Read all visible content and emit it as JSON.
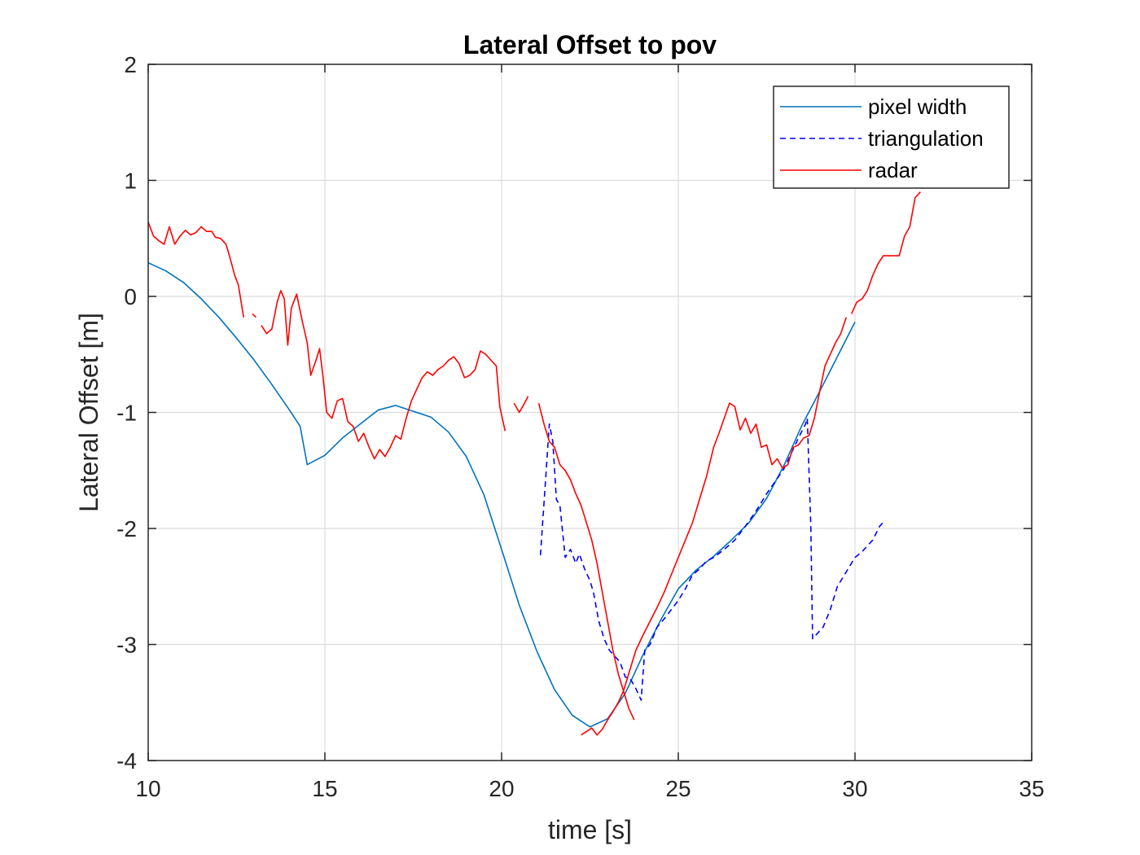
{
  "chart_data": {
    "type": "line",
    "title": "Lateral Offset to pov",
    "xlabel": "time [s]",
    "ylabel": "Lateral Offset [m]",
    "xlim": [
      10,
      35
    ],
    "ylim": [
      -4,
      2
    ],
    "xticks": [
      "10",
      "15",
      "20",
      "25",
      "30",
      "35"
    ],
    "yticks": [
      "2",
      "1",
      "0",
      "-1",
      "-2",
      "-3",
      "-4"
    ],
    "grid": true,
    "legend_position": "top-right",
    "series": [
      {
        "name": "pixel width",
        "color": "#0072BD",
        "style": "solid",
        "segments": [
          [
            [
              10.0,
              0.29
            ],
            [
              10.5,
              0.22
            ],
            [
              11.0,
              0.12
            ],
            [
              11.5,
              -0.02
            ],
            [
              12.0,
              -0.18
            ],
            [
              12.5,
              -0.36
            ],
            [
              13.0,
              -0.55
            ],
            [
              13.5,
              -0.76
            ],
            [
              14.0,
              -0.98
            ],
            [
              14.3,
              -1.12
            ],
            [
              14.5,
              -1.45
            ],
            [
              15.0,
              -1.37
            ],
            [
              15.5,
              -1.22
            ],
            [
              16.0,
              -1.1
            ],
            [
              16.5,
              -0.98
            ],
            [
              17.0,
              -0.94
            ],
            [
              17.5,
              -0.99
            ],
            [
              18.0,
              -1.04
            ],
            [
              18.5,
              -1.17
            ],
            [
              19.0,
              -1.38
            ],
            [
              19.5,
              -1.71
            ],
            [
              20.0,
              -2.18
            ],
            [
              20.5,
              -2.66
            ],
            [
              21.0,
              -3.06
            ],
            [
              21.5,
              -3.39
            ],
            [
              22.0,
              -3.61
            ],
            [
              22.5,
              -3.71
            ],
            [
              23.0,
              -3.64
            ],
            [
              23.5,
              -3.42
            ],
            [
              24.0,
              -3.09
            ],
            [
              24.5,
              -2.79
            ],
            [
              25.0,
              -2.52
            ],
            [
              25.5,
              -2.36
            ],
            [
              26.0,
              -2.24
            ],
            [
              26.5,
              -2.1
            ],
            [
              27.0,
              -1.95
            ],
            [
              27.5,
              -1.74
            ],
            [
              28.0,
              -1.45
            ],
            [
              28.5,
              -1.11
            ],
            [
              29.0,
              -0.82
            ],
            [
              29.5,
              -0.52
            ],
            [
              30.0,
              -0.22
            ]
          ]
        ]
      },
      {
        "name": "triangulation",
        "color": "#0000FF",
        "style": "dashed",
        "segments": [
          [
            [
              21.1,
              -2.23
            ],
            [
              21.25,
              -1.55
            ],
            [
              21.35,
              -1.1
            ],
            [
              21.45,
              -1.25
            ],
            [
              21.55,
              -1.75
            ],
            [
              21.65,
              -1.8
            ],
            [
              21.8,
              -2.25
            ],
            [
              21.95,
              -2.18
            ],
            [
              22.1,
              -2.3
            ],
            [
              22.2,
              -2.22
            ],
            [
              22.35,
              -2.35
            ],
            [
              22.5,
              -2.45
            ],
            [
              22.6,
              -2.55
            ],
            [
              22.75,
              -2.8
            ],
            [
              22.9,
              -2.95
            ],
            [
              23.05,
              -3.05
            ],
            [
              23.2,
              -3.1
            ],
            [
              23.35,
              -3.15
            ],
            [
              23.5,
              -3.28
            ],
            [
              23.65,
              -3.3
            ],
            [
              23.8,
              -3.38
            ],
            [
              23.95,
              -3.48
            ],
            [
              24.05,
              -3.05
            ],
            [
              24.2,
              -3.0
            ],
            [
              24.4,
              -2.85
            ],
            [
              24.6,
              -2.78
            ],
            [
              24.8,
              -2.7
            ],
            [
              25.0,
              -2.62
            ],
            [
              25.2,
              -2.52
            ],
            [
              25.4,
              -2.4
            ],
            [
              25.6,
              -2.35
            ],
            [
              25.8,
              -2.28
            ],
            [
              26.0,
              -2.25
            ],
            [
              26.3,
              -2.18
            ],
            [
              26.6,
              -2.1
            ],
            [
              26.9,
              -1.98
            ],
            [
              27.2,
              -1.85
            ],
            [
              27.5,
              -1.7
            ],
            [
              27.8,
              -1.57
            ],
            [
              28.0,
              -1.48
            ],
            [
              28.2,
              -1.35
            ],
            [
              28.4,
              -1.22
            ],
            [
              28.6,
              -1.1
            ],
            [
              28.65,
              -1.05
            ],
            [
              28.75,
              -2.0
            ],
            [
              28.8,
              -2.95
            ],
            [
              28.95,
              -2.9
            ],
            [
              29.1,
              -2.85
            ],
            [
              29.3,
              -2.7
            ],
            [
              29.5,
              -2.5
            ],
            [
              29.7,
              -2.4
            ],
            [
              30.0,
              -2.25
            ],
            [
              30.2,
              -2.2
            ],
            [
              30.5,
              -2.1
            ],
            [
              30.7,
              -1.98
            ],
            [
              30.85,
              -1.93
            ]
          ]
        ]
      },
      {
        "name": "radar",
        "color": "#FF0000",
        "style": "solid",
        "segments": [
          [
            [
              10.0,
              0.64
            ],
            [
              10.15,
              0.52
            ],
            [
              10.3,
              0.48
            ],
            [
              10.45,
              0.45
            ],
            [
              10.6,
              0.6
            ],
            [
              10.75,
              0.45
            ],
            [
              10.9,
              0.52
            ],
            [
              11.05,
              0.57
            ],
            [
              11.2,
              0.53
            ],
            [
              11.35,
              0.55
            ],
            [
              11.5,
              0.6
            ],
            [
              11.65,
              0.56
            ],
            [
              11.8,
              0.56
            ],
            [
              11.9,
              0.51
            ],
            [
              12.05,
              0.5
            ],
            [
              12.2,
              0.45
            ],
            [
              12.3,
              0.35
            ],
            [
              12.45,
              0.18
            ],
            [
              12.55,
              0.1
            ],
            [
              12.7,
              -0.18
            ]
          ],
          [
            [
              12.95,
              -0.15
            ],
            [
              13.05,
              -0.18
            ]
          ],
          [
            [
              13.2,
              -0.25
            ],
            [
              13.35,
              -0.32
            ],
            [
              13.5,
              -0.28
            ],
            [
              13.65,
              -0.05
            ],
            [
              13.75,
              0.05
            ],
            [
              13.85,
              -0.02
            ],
            [
              13.95,
              -0.42
            ],
            [
              14.05,
              -0.1
            ],
            [
              14.2,
              0.02
            ],
            [
              14.35,
              -0.2
            ],
            [
              14.5,
              -0.4
            ],
            [
              14.6,
              -0.68
            ],
            [
              14.75,
              -0.55
            ],
            [
              14.85,
              -0.45
            ],
            [
              14.95,
              -0.7
            ],
            [
              15.05,
              -1.0
            ],
            [
              15.2,
              -1.05
            ],
            [
              15.35,
              -0.9
            ],
            [
              15.5,
              -0.88
            ],
            [
              15.65,
              -1.08
            ],
            [
              15.8,
              -1.12
            ],
            [
              15.95,
              -1.25
            ],
            [
              16.1,
              -1.18
            ],
            [
              16.25,
              -1.3
            ],
            [
              16.4,
              -1.4
            ],
            [
              16.55,
              -1.32
            ],
            [
              16.7,
              -1.38
            ],
            [
              16.85,
              -1.3
            ],
            [
              17.0,
              -1.2
            ],
            [
              17.15,
              -1.23
            ],
            [
              17.3,
              -1.05
            ],
            [
              17.45,
              -0.9
            ],
            [
              17.6,
              -0.8
            ],
            [
              17.75,
              -0.7
            ],
            [
              17.9,
              -0.65
            ],
            [
              18.05,
              -0.68
            ],
            [
              18.2,
              -0.63
            ],
            [
              18.35,
              -0.6
            ],
            [
              18.5,
              -0.55
            ],
            [
              18.65,
              -0.52
            ],
            [
              18.8,
              -0.58
            ],
            [
              18.95,
              -0.7
            ],
            [
              19.1,
              -0.68
            ],
            [
              19.25,
              -0.63
            ],
            [
              19.4,
              -0.47
            ],
            [
              19.55,
              -0.5
            ],
            [
              19.7,
              -0.55
            ],
            [
              19.85,
              -0.6
            ],
            [
              19.95,
              -0.95
            ],
            [
              20.1,
              -1.16
            ]
          ],
          [
            [
              20.35,
              -0.92
            ],
            [
              20.5,
              -1.0
            ],
            [
              20.65,
              -0.92
            ],
            [
              20.75,
              -0.86
            ]
          ],
          [
            [
              21.05,
              -0.92
            ],
            [
              21.2,
              -1.1
            ],
            [
              21.35,
              -1.25
            ],
            [
              21.5,
              -1.3
            ],
            [
              21.65,
              -1.45
            ],
            [
              21.8,
              -1.5
            ],
            [
              21.95,
              -1.58
            ],
            [
              22.1,
              -1.7
            ],
            [
              22.25,
              -1.8
            ],
            [
              22.4,
              -1.95
            ],
            [
              22.55,
              -2.1
            ],
            [
              22.7,
              -2.3
            ],
            [
              22.85,
              -2.55
            ],
            [
              23.0,
              -2.8
            ],
            [
              23.15,
              -3.05
            ],
            [
              23.3,
              -3.25
            ],
            [
              23.45,
              -3.4
            ],
            [
              23.6,
              -3.55
            ],
            [
              23.75,
              -3.65
            ]
          ],
          [
            [
              22.25,
              -3.78
            ],
            [
              22.4,
              -3.75
            ],
            [
              22.55,
              -3.72
            ],
            [
              22.7,
              -3.78
            ],
            [
              22.85,
              -3.73
            ],
            [
              23.0,
              -3.65
            ],
            [
              23.15,
              -3.58
            ],
            [
              23.3,
              -3.5
            ],
            [
              23.45,
              -3.4
            ],
            [
              23.6,
              -3.25
            ],
            [
              23.8,
              -3.05
            ],
            [
              24.0,
              -2.92
            ],
            [
              24.2,
              -2.8
            ],
            [
              24.4,
              -2.68
            ],
            [
              24.6,
              -2.55
            ],
            [
              24.8,
              -2.4
            ],
            [
              25.0,
              -2.25
            ],
            [
              25.2,
              -2.1
            ],
            [
              25.4,
              -1.95
            ],
            [
              25.6,
              -1.75
            ],
            [
              25.8,
              -1.55
            ],
            [
              26.0,
              -1.3
            ],
            [
              26.15,
              -1.18
            ],
            [
              26.3,
              -1.05
            ],
            [
              26.45,
              -0.92
            ],
            [
              26.6,
              -0.95
            ],
            [
              26.75,
              -1.15
            ],
            [
              26.9,
              -1.05
            ],
            [
              27.05,
              -1.18
            ],
            [
              27.2,
              -1.1
            ],
            [
              27.35,
              -1.3
            ],
            [
              27.5,
              -1.28
            ],
            [
              27.65,
              -1.45
            ],
            [
              27.8,
              -1.4
            ],
            [
              27.95,
              -1.48
            ],
            [
              28.1,
              -1.45
            ],
            [
              28.25,
              -1.3
            ],
            [
              28.4,
              -1.28
            ],
            [
              28.55,
              -1.22
            ],
            [
              28.7,
              -1.2
            ],
            [
              28.85,
              -1.05
            ],
            [
              29.0,
              -0.82
            ],
            [
              29.15,
              -0.6
            ],
            [
              29.3,
              -0.5
            ],
            [
              29.45,
              -0.4
            ],
            [
              29.6,
              -0.32
            ],
            [
              29.75,
              -0.18
            ]
          ],
          [
            [
              29.9,
              -0.15
            ],
            [
              30.05,
              -0.05
            ],
            [
              30.2,
              -0.02
            ],
            [
              30.35,
              0.05
            ],
            [
              30.5,
              0.18
            ],
            [
              30.65,
              0.28
            ],
            [
              30.8,
              0.35
            ],
            [
              30.95,
              0.35
            ],
            [
              31.1,
              0.35
            ],
            [
              31.25,
              0.35
            ],
            [
              31.4,
              0.52
            ],
            [
              31.55,
              0.6
            ],
            [
              31.7,
              0.85
            ],
            [
              31.85,
              0.9
            ]
          ]
        ]
      }
    ]
  }
}
